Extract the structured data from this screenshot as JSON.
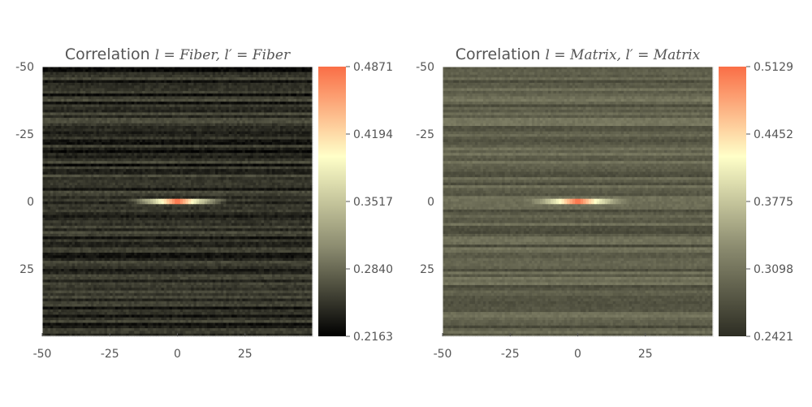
{
  "chart_data": [
    {
      "type": "heatmap",
      "title": {
        "prefix": "Correlation",
        "math": "l = Fiber, l′ = Fiber"
      },
      "xlim": [
        -50,
        50
      ],
      "ylim": [
        -50,
        50
      ],
      "x_ticks": [
        -50,
        -25,
        0,
        25
      ],
      "y_ticks": [
        -50,
        -25,
        0,
        25
      ],
      "y_inverted": true,
      "grid": false,
      "colorbar": {
        "min": 0.2163,
        "max": 0.4871,
        "ticks": [
          "0.4871",
          "0.4194",
          "0.3517",
          "0.2840",
          "0.2163"
        ]
      },
      "colormap": [
        "#000000",
        "#8c8c70",
        "#ffffc8",
        "#fa6e46"
      ],
      "background_level": 0.245,
      "background_variation": 0.03,
      "peak": {
        "x": 0,
        "y": 0,
        "value": 0.4871,
        "half_width_x": 20
      }
    },
    {
      "type": "heatmap",
      "title": {
        "prefix": "Correlation",
        "math": "l = Matrix, l′ = Matrix"
      },
      "xlim": [
        -50,
        50
      ],
      "ylim": [
        -50,
        50
      ],
      "x_ticks": [
        -50,
        -25,
        0,
        25
      ],
      "y_ticks": [
        -50,
        -25,
        0,
        25
      ],
      "y_inverted": true,
      "grid": false,
      "colorbar": {
        "min": 0.2421,
        "max": 0.5129,
        "ticks": [
          "0.5129",
          "0.4452",
          "0.3775",
          "0.3098",
          "0.2421"
        ]
      },
      "colormap": [
        "#2d2d23",
        "#8c8c70",
        "#ffffc8",
        "#fa6e46"
      ],
      "background_level": 0.29,
      "background_variation": 0.03,
      "peak": {
        "x": 0,
        "y": 0,
        "value": 0.5129,
        "half_width_x": 20
      }
    }
  ]
}
